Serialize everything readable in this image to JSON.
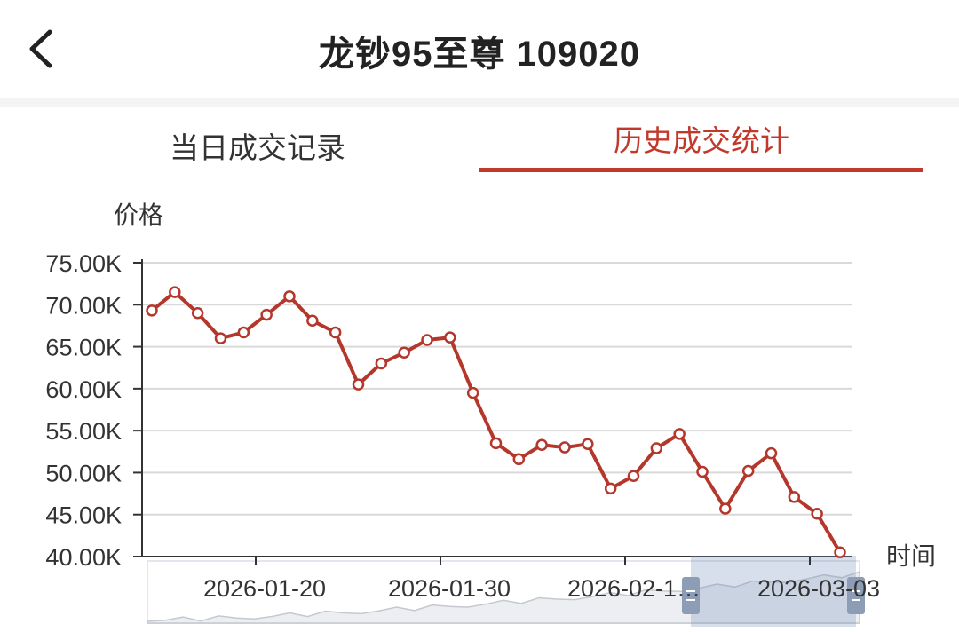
{
  "header": {
    "title": "龙钞95至尊 109020"
  },
  "tabs": [
    {
      "label": "当日成交记录",
      "active": false
    },
    {
      "label": "历史成交统计",
      "active": true
    }
  ],
  "colors": {
    "accent": "#c0392b",
    "line": "#b5372c",
    "grid": "#d9d9d9"
  },
  "chart_data": {
    "type": "line",
    "ylabel": "价格",
    "xlabel": "时间",
    "ylim": [
      40000,
      75000
    ],
    "y_ticks": [
      "75.00K",
      "70.00K",
      "65.00K",
      "60.00K",
      "55.00K",
      "50.00K",
      "45.00K",
      "40.00K"
    ],
    "x_ticks": [
      "2026-01-20",
      "2026-01-30",
      "2026-02-1…",
      "2026-03-03"
    ],
    "series": [
      {
        "values": [
          69300,
          71500,
          69000,
          66000,
          66700,
          68800,
          71000,
          68100,
          66700,
          60500,
          63000,
          64300,
          65800,
          66100,
          59500,
          53500,
          51600,
          53300,
          53000,
          53400,
          48100,
          49600,
          52900,
          54600,
          50100,
          45700,
          50200,
          52300,
          47100,
          45100,
          40500
        ]
      }
    ],
    "grid": true,
    "datazoom_slider": true
  }
}
